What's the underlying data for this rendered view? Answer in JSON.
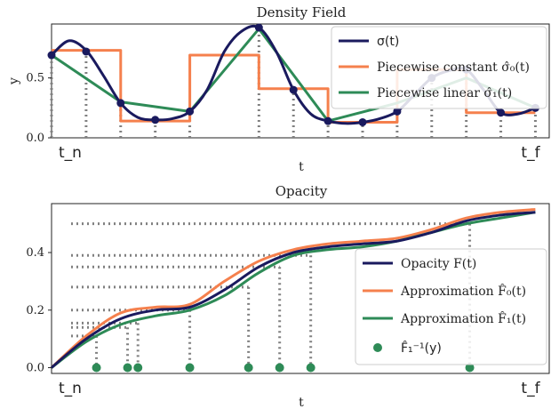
{
  "colors": {
    "navy": "#1a1a5e",
    "orange": "#f5804d",
    "green": "#2e8b57",
    "dots": "#808080",
    "axis": "#222222",
    "legend_edge": "#cccccc"
  },
  "chart_data": [
    {
      "type": "line",
      "title": "Density Field",
      "xlabel": "t",
      "ylabel": "y",
      "xlim": [
        0,
        7.2
      ],
      "ylim": [
        0,
        0.95
      ],
      "yticks": [
        0.0,
        0.5
      ],
      "ytick_labels": [
        "0.0",
        "0.5"
      ],
      "xtick_labels": [
        "t_n",
        "t_f"
      ],
      "legend_position": "top-right",
      "sample_t": [
        0,
        0.5,
        1,
        1.5,
        2,
        3,
        3.5,
        4,
        4.5,
        5,
        5.5,
        6,
        6.5,
        7
      ],
      "sigma_at_samples": [
        0.69,
        0.72,
        0.29,
        0.15,
        0.22,
        0.92,
        0.4,
        0.14,
        0.13,
        0.22,
        0.5,
        0.57,
        0.21,
        0.25
      ],
      "series": [
        {
          "name": "σ(t)",
          "style": "smooth",
          "x": [
            0,
            0.25,
            0.5,
            0.75,
            1,
            1.25,
            1.5,
            1.75,
            2,
            2.25,
            2.5,
            2.75,
            3,
            3.25,
            3.5,
            3.75,
            4,
            4.25,
            4.5,
            4.75,
            5,
            5.25,
            5.5,
            5.75,
            6,
            6.25,
            6.5,
            6.75,
            7
          ],
          "y": [
            0.69,
            0.81,
            0.73,
            0.52,
            0.29,
            0.17,
            0.15,
            0.16,
            0.22,
            0.4,
            0.72,
            0.89,
            0.92,
            0.72,
            0.4,
            0.2,
            0.14,
            0.12,
            0.13,
            0.16,
            0.22,
            0.36,
            0.5,
            0.56,
            0.57,
            0.4,
            0.21,
            0.2,
            0.25
          ]
        },
        {
          "name": "Piecewise constant σ̂₀(t)",
          "style": "step",
          "x": [
            0,
            1,
            1,
            2,
            2,
            3,
            3,
            4,
            4,
            5,
            5,
            6,
            6,
            7
          ],
          "y": [
            0.73,
            0.73,
            0.14,
            0.14,
            0.69,
            0.69,
            0.41,
            0.41,
            0.13,
            0.13,
            0.57,
            0.57,
            0.21,
            0.21
          ]
        },
        {
          "name": "Piecewise linear σ̂₁(t)",
          "style": "linear",
          "x": [
            0,
            1,
            2,
            3,
            4,
            5,
            6,
            7
          ],
          "y": [
            0.69,
            0.3,
            0.22,
            0.91,
            0.14,
            0.29,
            0.5,
            0.25
          ]
        }
      ]
    },
    {
      "type": "line",
      "title": "Opacity",
      "xlabel": "t",
      "ylabel": "",
      "xlim": [
        0,
        7.2
      ],
      "ylim": [
        -0.02,
        0.57
      ],
      "yticks": [
        0.0,
        0.2,
        0.4
      ],
      "ytick_labels": [
        "0.0",
        "0.2",
        "0.4"
      ],
      "xtick_labels": [
        "t_n",
        "t_f"
      ],
      "legend_position": "bottom-right",
      "series": [
        {
          "name": "Opacity F(t)",
          "x": [
            0,
            0.5,
            1,
            1.5,
            2,
            2.5,
            3,
            3.5,
            4,
            4.5,
            5,
            5.5,
            6,
            6.5,
            7
          ],
          "y": [
            0.0,
            0.1,
            0.17,
            0.2,
            0.21,
            0.27,
            0.35,
            0.4,
            0.42,
            0.43,
            0.44,
            0.47,
            0.51,
            0.53,
            0.54
          ]
        },
        {
          "name": "Approximation F̂₀(t)",
          "x": [
            0,
            0.5,
            1,
            1.5,
            2,
            2.5,
            3,
            3.5,
            4,
            4.5,
            5,
            5.5,
            6,
            6.5,
            7
          ],
          "y": [
            0.0,
            0.11,
            0.19,
            0.21,
            0.22,
            0.3,
            0.37,
            0.41,
            0.43,
            0.44,
            0.45,
            0.48,
            0.52,
            0.54,
            0.55
          ]
        },
        {
          "name": "Approximation F̂₁(t)",
          "x": [
            0,
            0.5,
            1,
            1.5,
            2,
            2.5,
            3,
            3.5,
            4,
            4.5,
            5,
            5.5,
            6,
            6.5,
            7
          ],
          "y": [
            0.0,
            0.09,
            0.15,
            0.18,
            0.2,
            0.25,
            0.33,
            0.39,
            0.41,
            0.42,
            0.44,
            0.47,
            0.5,
            0.52,
            0.54
          ]
        },
        {
          "name": "F̂₁⁻¹(y)",
          "style": "points",
          "y_samples": [
            0.11,
            0.14,
            0.155,
            0.2,
            0.28,
            0.35,
            0.39,
            0.5
          ],
          "x": [
            0.65,
            1.1,
            1.25,
            2.0,
            2.85,
            3.3,
            3.75,
            6.05
          ],
          "y": [
            0,
            0,
            0,
            0,
            0,
            0,
            0,
            0
          ]
        }
      ]
    }
  ]
}
